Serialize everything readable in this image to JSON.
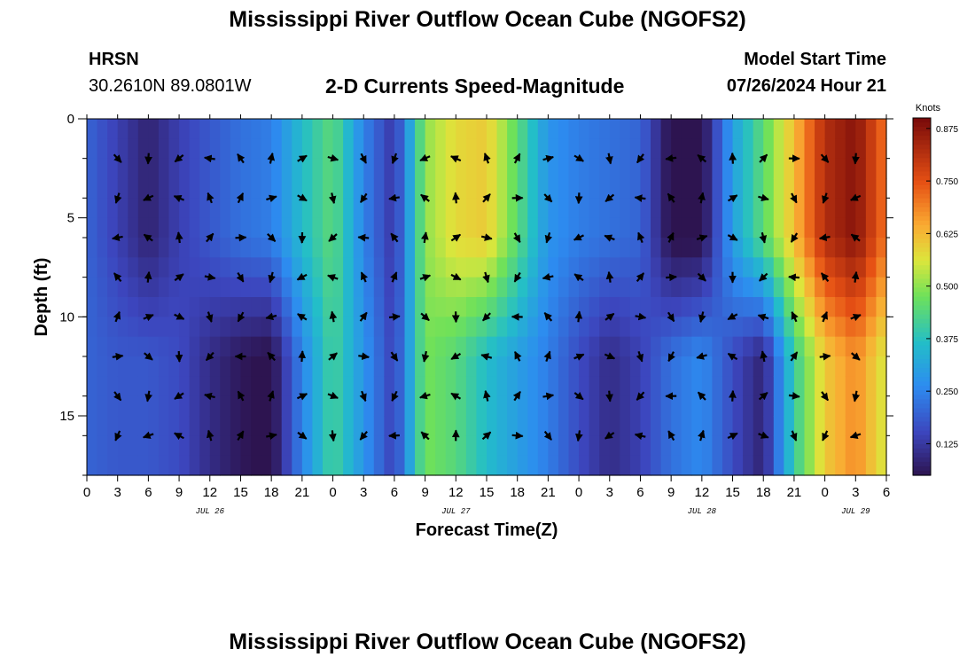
{
  "page": {
    "title": "Mississippi River Outflow Ocean Cube (NGOFS2)",
    "title_repeat": "Mississippi River Outflow Ocean Cube (NGOFS2)",
    "station_name": "HRSN",
    "station_coords": "30.2610N  89.0801W",
    "plot_title": "2-D Currents Speed-Magnitude",
    "model_start_label": "Model Start Time",
    "model_start_value": "07/26/2024 Hour 21"
  },
  "chart_data": {
    "type": "heatmap",
    "xlabel": "Forecast Time(Z)",
    "ylabel": "Depth (ft)",
    "x_hours_range": [
      0,
      78
    ],
    "y_depth_range": [
      0,
      18
    ],
    "y_inverted": true,
    "x_tick_labels": [
      "0",
      "3",
      "6",
      "9",
      "12",
      "15",
      "18",
      "21",
      "0",
      "3",
      "6",
      "9",
      "12",
      "15",
      "18",
      "21",
      "0",
      "3",
      "6",
      "9",
      "12",
      "15",
      "18",
      "21",
      "0",
      "3",
      "6"
    ],
    "x_tick_hours": [
      0,
      3,
      6,
      9,
      12,
      15,
      18,
      21,
      24,
      27,
      30,
      33,
      36,
      39,
      42,
      45,
      48,
      51,
      54,
      57,
      60,
      63,
      66,
      69,
      72,
      75,
      78
    ],
    "y_tick_values": [
      0,
      5,
      10,
      15
    ],
    "y_tick_labels": [
      "0",
      "5",
      "10",
      "15"
    ],
    "date_labels": [
      {
        "text": "JUL 26",
        "hour": 12
      },
      {
        "text": "JUL 27",
        "hour": 36
      },
      {
        "text": "JUL 28",
        "hour": 60
      },
      {
        "text": "JUL 29",
        "hour": 75
      }
    ],
    "colorbar": {
      "label": "Knots",
      "min": 0.05,
      "max": 0.9,
      "tick_values": [
        0.125,
        0.25,
        0.375,
        0.5,
        0.625,
        0.75,
        0.875
      ],
      "tick_labels": [
        "0.125",
        "0.250",
        "0.375",
        "0.500",
        "0.625",
        "0.750",
        "0.875"
      ],
      "colormap": "jet-like"
    },
    "speed_by_time": {
      "hours": [
        0,
        3,
        6,
        9,
        12,
        15,
        18,
        21,
        24,
        27,
        30,
        33,
        36,
        39,
        42,
        45,
        48,
        51,
        54,
        57,
        60,
        63,
        66,
        69,
        72,
        75,
        78
      ],
      "surface_to_8ft_knots": [
        0.2,
        0.14,
        0.08,
        0.14,
        0.18,
        0.22,
        0.24,
        0.36,
        0.45,
        0.25,
        0.12,
        0.5,
        0.58,
        0.6,
        0.45,
        0.28,
        0.24,
        0.22,
        0.2,
        0.04,
        0.04,
        0.3,
        0.45,
        0.62,
        0.82,
        0.88,
        0.7
      ],
      "8_to_18ft_knots": [
        0.2,
        0.18,
        0.18,
        0.16,
        0.1,
        0.06,
        0.04,
        0.25,
        0.42,
        0.28,
        0.14,
        0.48,
        0.44,
        0.36,
        0.3,
        0.24,
        0.16,
        0.1,
        0.14,
        0.22,
        0.26,
        0.16,
        0.08,
        0.4,
        0.6,
        0.68,
        0.55
      ]
    },
    "vector_rows_depth_ft": [
      2,
      4,
      6,
      8,
      10,
      12,
      14,
      16
    ]
  }
}
